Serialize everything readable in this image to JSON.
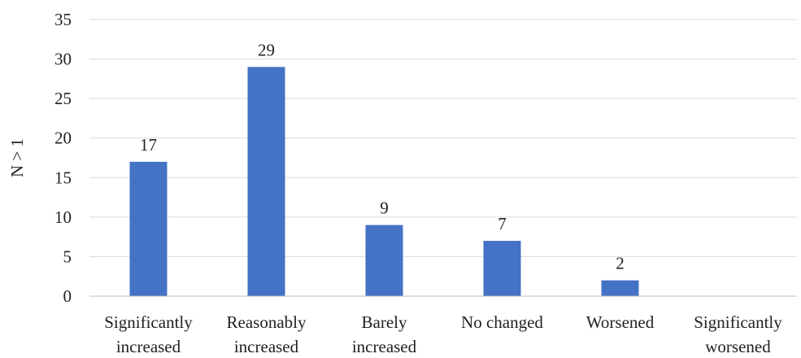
{
  "chart_data": {
    "type": "bar",
    "title": "",
    "xlabel": "",
    "ylabel": "N > 1",
    "categories": [
      [
        "Significantly",
        "increased"
      ],
      [
        "Reasonably",
        "increased"
      ],
      [
        "Barely",
        "increased"
      ],
      [
        "No changed"
      ],
      [
        "Worsened"
      ],
      [
        "Significantly",
        "worsened"
      ]
    ],
    "values": [
      17,
      29,
      9,
      7,
      2,
      null
    ],
    "data_labels": [
      "17",
      "29",
      "9",
      "7",
      "2",
      ""
    ],
    "ylim": [
      0,
      35
    ],
    "yticks": [
      0,
      5,
      10,
      15,
      20,
      25,
      30,
      35
    ],
    "grid": true,
    "legend": "none",
    "colors": {
      "bar": "#4472C4",
      "grid": "#D9D9D9",
      "axis": "#BFBFBF"
    }
  }
}
